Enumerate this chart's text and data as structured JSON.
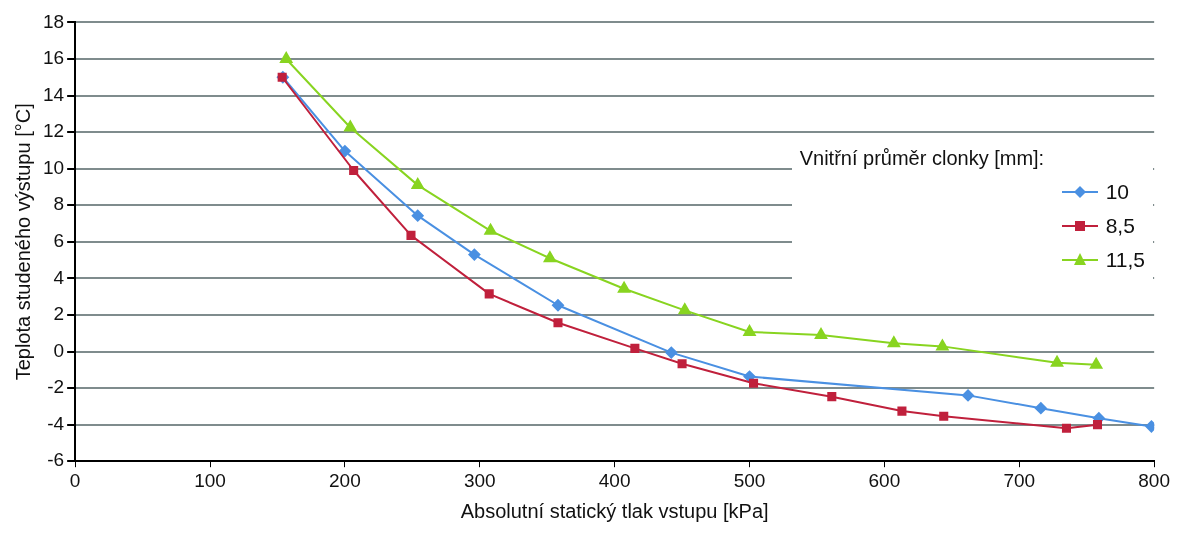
{
  "chart_data": {
    "type": "line",
    "xlabel": "Absolutní statický tlak vstupu [kPa]",
    "ylabel": "Teplota studeného výstupu [°C]",
    "legend_title": "Vnitřní průměr clonky [mm]:",
    "legend": "right",
    "grid": "y",
    "xlim": [
      0,
      800
    ],
    "xticks": [
      0,
      100,
      200,
      300,
      400,
      500,
      600,
      700,
      800
    ],
    "ylim": [
      -6,
      18
    ],
    "yticks": [
      -6,
      -4,
      -2,
      0,
      2,
      4,
      6,
      8,
      10,
      12,
      14,
      16,
      18
    ],
    "series": [
      {
        "name": "10",
        "color": "#4a90e2",
        "marker": "diamond",
        "x": [
          154,
          200,
          254,
          296,
          358,
          442,
          500,
          662,
          716,
          759,
          798
        ],
        "values": [
          15,
          10.96,
          7.43,
          5.3,
          2.53,
          -0.06,
          -1.37,
          -2.4,
          -3.1,
          -3.65,
          -4.1
        ]
      },
      {
        "name": "8,5",
        "color": "#c0203c",
        "marker": "square",
        "x": [
          153.5,
          206.5,
          249,
          307,
          358,
          415,
          450,
          503,
          561,
          613,
          644,
          735,
          758
        ],
        "values": [
          15,
          9.9,
          6.35,
          3.15,
          1.57,
          0.17,
          -0.67,
          -1.74,
          -2.47,
          -3.26,
          -3.54,
          -4.2,
          -4
        ]
      },
      {
        "name": "11,5",
        "color": "#88d420",
        "marker": "triangle",
        "x": [
          156.5,
          204,
          254,
          308,
          352,
          407,
          452,
          500,
          553,
          607,
          643,
          728,
          757
        ],
        "values": [
          16,
          12.25,
          9.1,
          6.6,
          5.1,
          3.43,
          2.25,
          1.07,
          0.9,
          0.45,
          0.28,
          -0.62,
          -0.73
        ]
      }
    ]
  }
}
